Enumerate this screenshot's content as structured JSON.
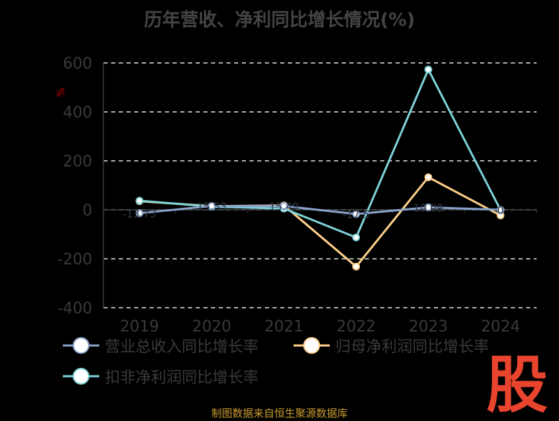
{
  "chart_data": {
    "type": "line",
    "title": "历年营收、净利同比增长情况(%)",
    "ylabel": "%",
    "categories": [
      "2019",
      "2020",
      "2021",
      "2022",
      "2023",
      "2024"
    ],
    "ylim": [
      -400,
      600
    ],
    "yticks": [
      "600",
      "400",
      "200",
      "0",
      "-200",
      "-400"
    ],
    "grid": true,
    "legend_position": "bottom",
    "series": [
      {
        "name": "营业总收入同比增长率",
        "color": "#8aa3cc",
        "values": [
          -13.73,
          15.53,
          15.49,
          -17.5,
          10.09,
          0
        ],
        "labels": [
          "-13.73",
          "15.53",
          "15.49",
          "-17.5",
          "10.09",
          "0"
        ]
      },
      {
        "name": "归母净利润同比增长率",
        "color": "#ffd08a",
        "values": [
          35,
          15,
          18,
          -232,
          133,
          -23
        ],
        "labels": []
      },
      {
        "name": "扣非净利润同比增长率",
        "color": "#7ed3d8",
        "values": [
          37,
          13,
          5,
          -113,
          573,
          -1
        ],
        "labels": []
      }
    ]
  },
  "footer": {
    "source": "制图数据来自恒生聚源数据库"
  },
  "logo": {
    "glyph": "股"
  }
}
